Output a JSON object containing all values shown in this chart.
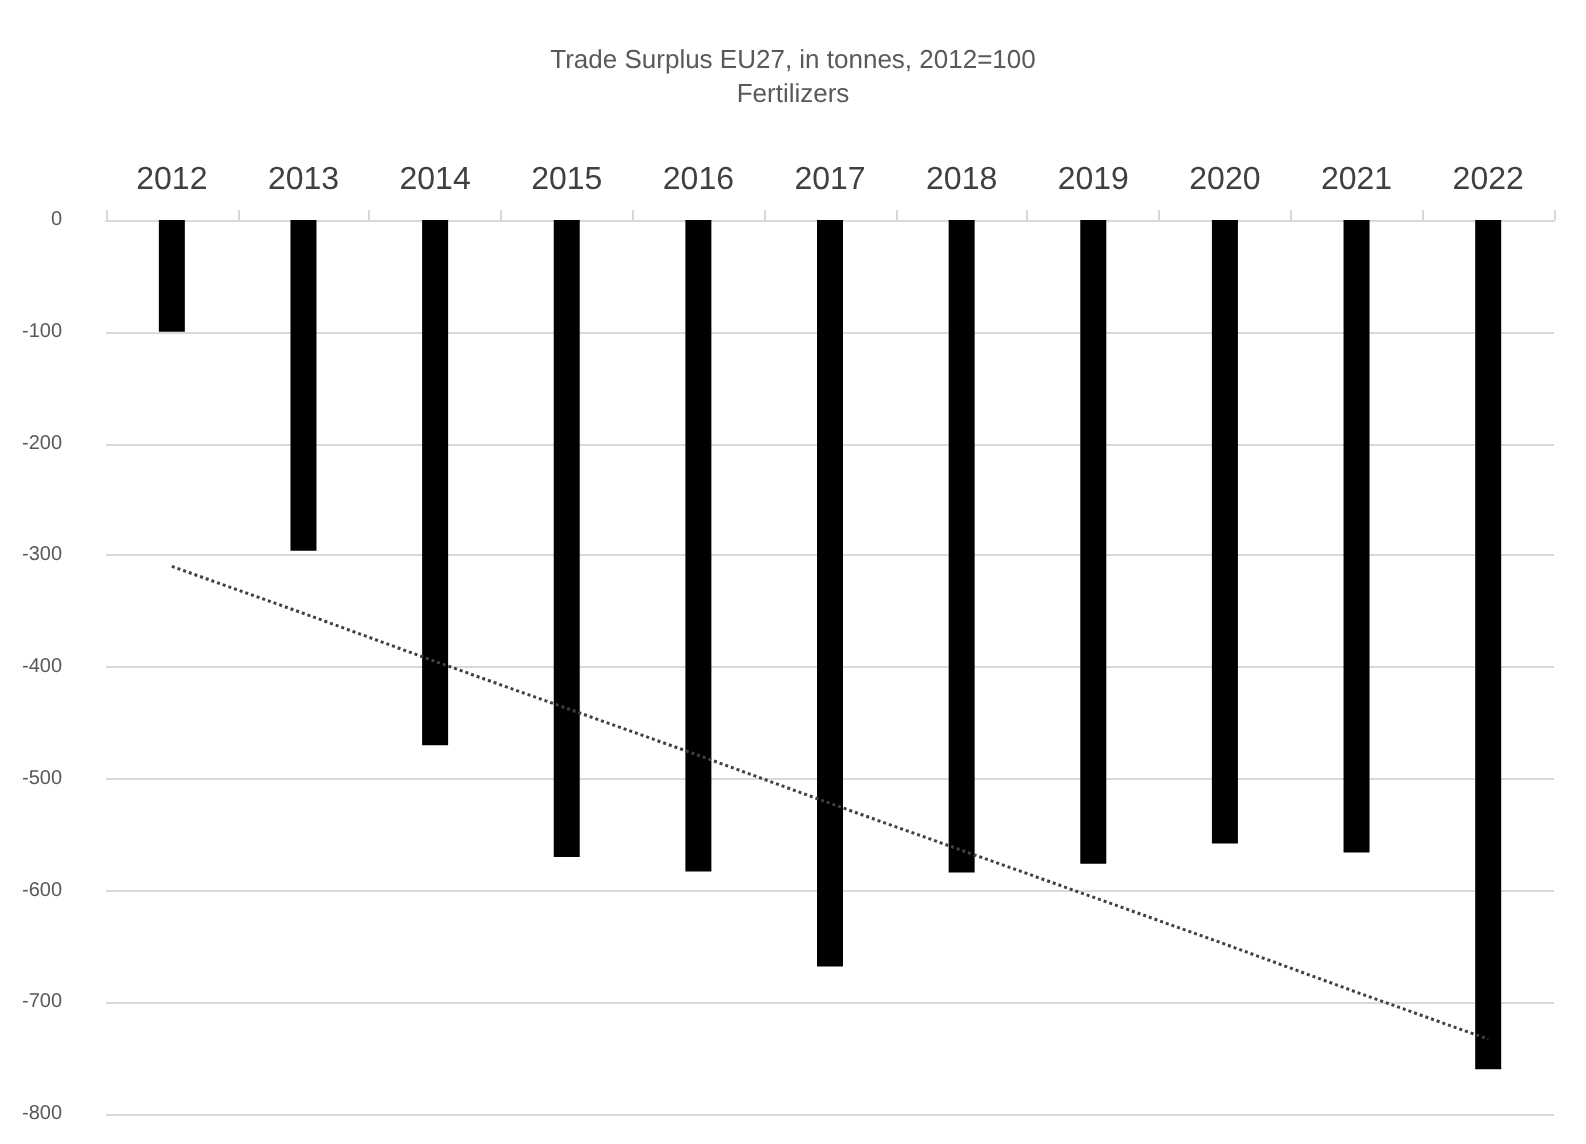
{
  "chart_data": {
    "type": "bar",
    "title": "Trade Surplus EU27, in tonnes, 2012=100",
    "subtitle": "Fertilizers",
    "categories": [
      "2012",
      "2013",
      "2014",
      "2015",
      "2016",
      "2017",
      "2018",
      "2019",
      "2020",
      "2021",
      "2022"
    ],
    "series": [
      {
        "color": "#000000",
        "values": [
          -100,
          -296,
          -470,
          -570,
          -583,
          -668,
          -584,
          -576,
          -558,
          -566,
          -760
        ]
      },
      {
        "type": "line",
        "color": "#404040",
        "line_style": "dotted",
        "marker": "none",
        "values": [
          -310,
          -352,
          -395,
          -437,
          -479,
          -522,
          -564,
          -606,
          -648,
          -691,
          -733
        ]
      }
    ],
    "ylim": [
      -800,
      0
    ],
    "yticks": [
      -800,
      -700,
      -600,
      -500,
      -400,
      -300,
      -200,
      -100,
      0
    ],
    "grid": "y"
  }
}
